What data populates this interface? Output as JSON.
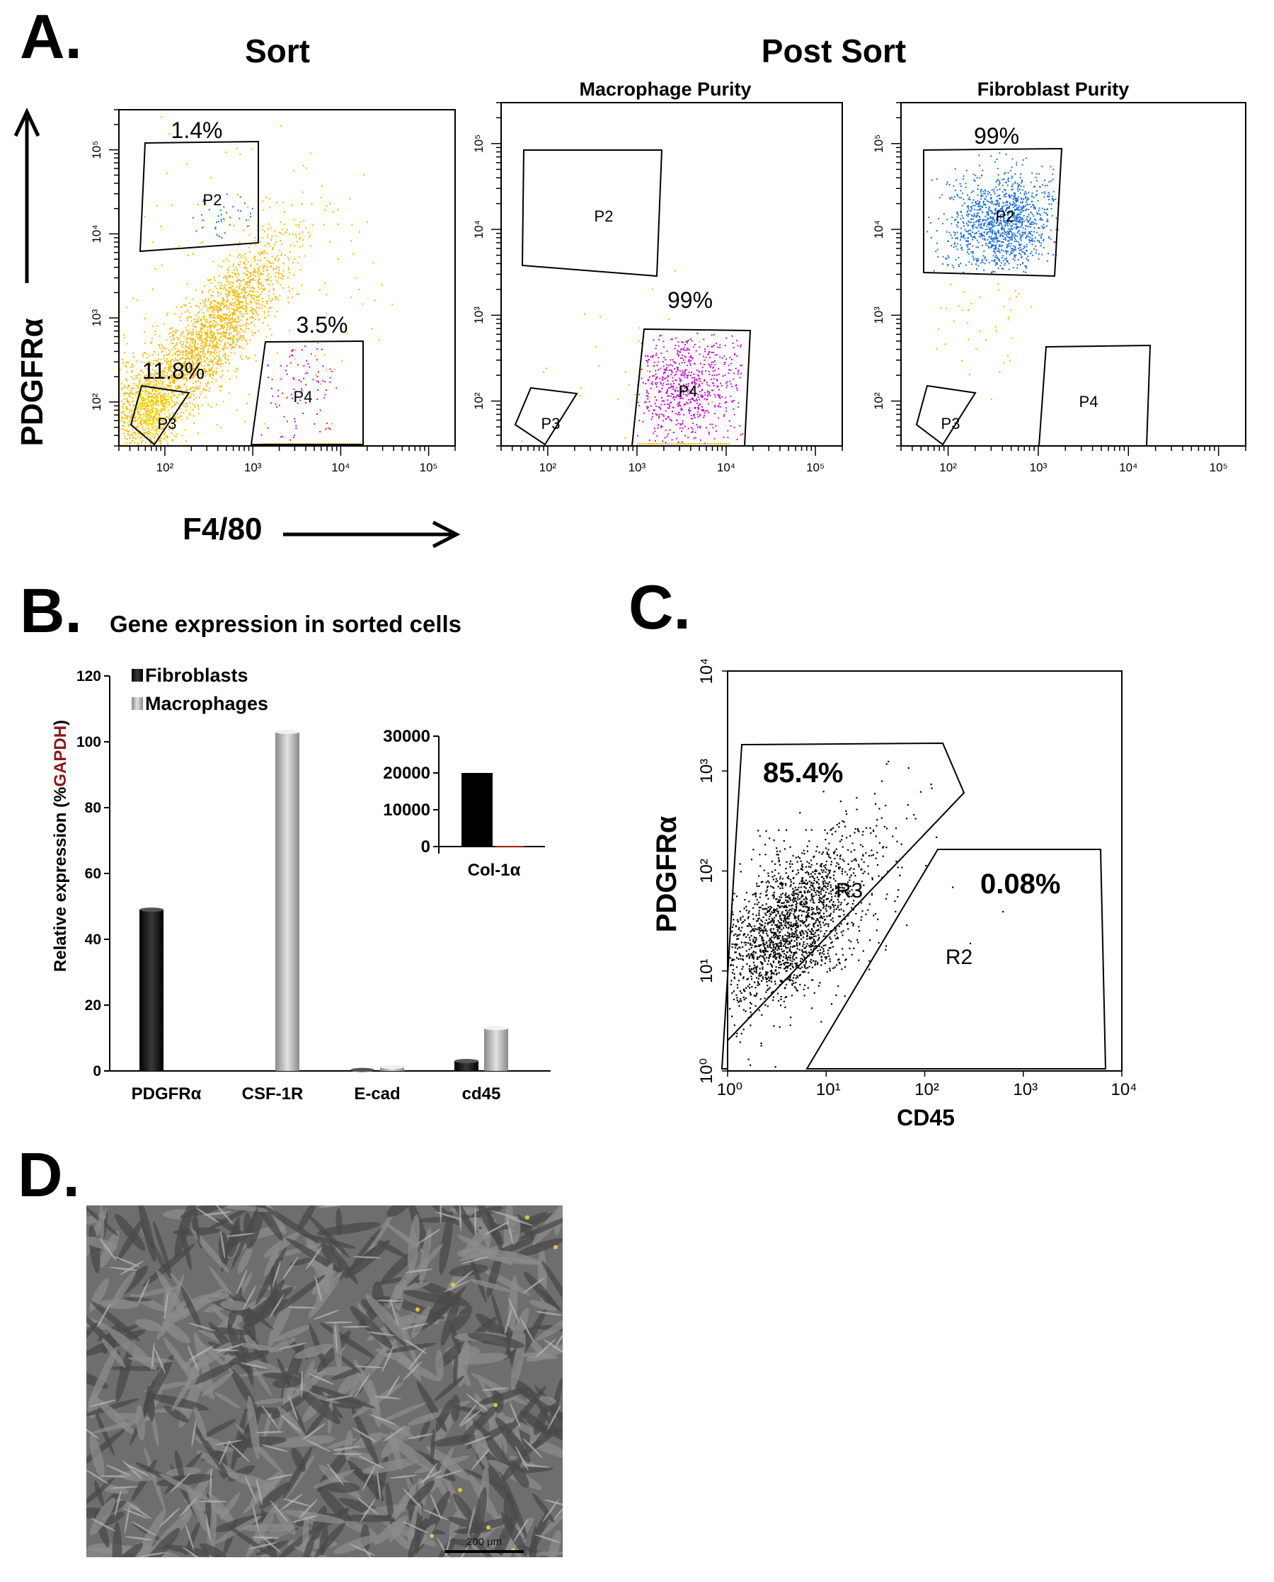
{
  "panel_a": {
    "letter": "A.",
    "sort_heading": "Sort",
    "post_sort_heading": "Post Sort",
    "y_axis_label": "PDGFRα",
    "x_axis_label": "F4/80",
    "plots": [
      {
        "title": "",
        "gates": [
          {
            "name": "P2",
            "percent": "1.4%"
          },
          {
            "name": "P3",
            "percent": "11.8%"
          },
          {
            "name": "P4",
            "percent": "3.5%"
          }
        ]
      },
      {
        "title": "Macrophage Purity",
        "gates": [
          {
            "name": "P2",
            "percent": ""
          },
          {
            "name": "P3",
            "percent": ""
          },
          {
            "name": "P4",
            "percent": "99%"
          }
        ]
      },
      {
        "title": "Fibroblast Purity",
        "gates": [
          {
            "name": "P2",
            "percent": "99%"
          },
          {
            "name": "P3",
            "percent": ""
          },
          {
            "name": "P4",
            "percent": ""
          }
        ]
      }
    ],
    "colors": {
      "ungated": "#f5b800",
      "p2": "#1f6fd6",
      "p3": "#f7e000",
      "p4": "#c010d0"
    }
  },
  "panel_b": {
    "letter": "B.",
    "title": "Gene expression in sorted cells",
    "y_axis_label_main": "Relative expression (%",
    "y_axis_label_gapdh": "GAPDH",
    "y_axis_label_close": ")",
    "legend": [
      "Fibroblasts",
      "Macrophages"
    ]
  },
  "panel_c": {
    "letter": "C.",
    "y_axis_label": "PDGFRα",
    "x_axis_label": "CD45",
    "gates": [
      {
        "name": "R3",
        "percent": "85.4%"
      },
      {
        "name": "R2",
        "percent": "0.08%"
      }
    ]
  },
  "panel_d": {
    "letter": "D.",
    "scale_bar_label": "200 μm"
  },
  "chart_data": [
    {
      "type": "scatter",
      "panel": "A-sort",
      "x_scale": "log",
      "y_scale": "log",
      "xlim": [
        30,
        200000
      ],
      "ylim": [
        30,
        300000
      ],
      "x_ticks": [
        "10²",
        "10³",
        "10⁴",
        "10⁵"
      ],
      "y_ticks": [
        "10²",
        "10³",
        "10⁴",
        "10⁵"
      ],
      "gate_percent": {
        "P2": 1.4,
        "P3": 11.8,
        "P4": 3.5
      }
    },
    {
      "type": "scatter",
      "panel": "A-macrophage-purity",
      "x_scale": "log",
      "y_scale": "log",
      "xlim": [
        30,
        200000
      ],
      "ylim": [
        30,
        300000
      ],
      "x_ticks": [
        "10²",
        "10³",
        "10⁴",
        "10⁵"
      ],
      "y_ticks": [
        "10²",
        "10³",
        "10⁴",
        "10⁵"
      ],
      "gate_percent": {
        "P4": 99
      }
    },
    {
      "type": "scatter",
      "panel": "A-fibroblast-purity",
      "x_scale": "log",
      "y_scale": "log",
      "xlim": [
        30,
        200000
      ],
      "ylim": [
        30,
        300000
      ],
      "x_ticks": [
        "10²",
        "10³",
        "10⁴",
        "10⁵"
      ],
      "y_ticks": [
        "10²",
        "10³",
        "10⁴",
        "10⁵"
      ],
      "gate_percent": {
        "P2": 99
      }
    },
    {
      "type": "bar",
      "panel": "B-main",
      "categories": [
        "PDGFRα",
        "CSF-1R",
        "E-cad",
        "cd45"
      ],
      "series": [
        {
          "name": "Fibroblasts",
          "values": [
            49,
            0,
            0.3,
            3
          ]
        },
        {
          "name": "Macrophages",
          "values": [
            0,
            103,
            1.2,
            13
          ]
        }
      ],
      "ylim": [
        0,
        120
      ],
      "y_ticks": [
        0,
        20,
        40,
        60,
        80,
        100,
        120
      ],
      "legend": "top-left"
    },
    {
      "type": "bar",
      "panel": "B-inset",
      "categories": [
        "Col-1α"
      ],
      "series": [
        {
          "name": "Fibroblasts",
          "values": [
            20000
          ]
        },
        {
          "name": "Macrophages",
          "values": [
            150
          ]
        }
      ],
      "ylim": [
        0,
        30000
      ],
      "y_ticks": [
        0,
        10000,
        20000,
        30000
      ]
    },
    {
      "type": "scatter",
      "panel": "C",
      "x_scale": "log",
      "y_scale": "log",
      "xlim": [
        1,
        10000
      ],
      "ylim": [
        1,
        10000
      ],
      "x_ticks": [
        "10⁰",
        "10¹",
        "10²",
        "10³",
        "10⁴"
      ],
      "y_ticks": [
        "10⁰",
        "10¹",
        "10²",
        "10³",
        "10⁴"
      ],
      "gate_percent": {
        "R3": 85.4,
        "R2": 0.08
      }
    }
  ]
}
